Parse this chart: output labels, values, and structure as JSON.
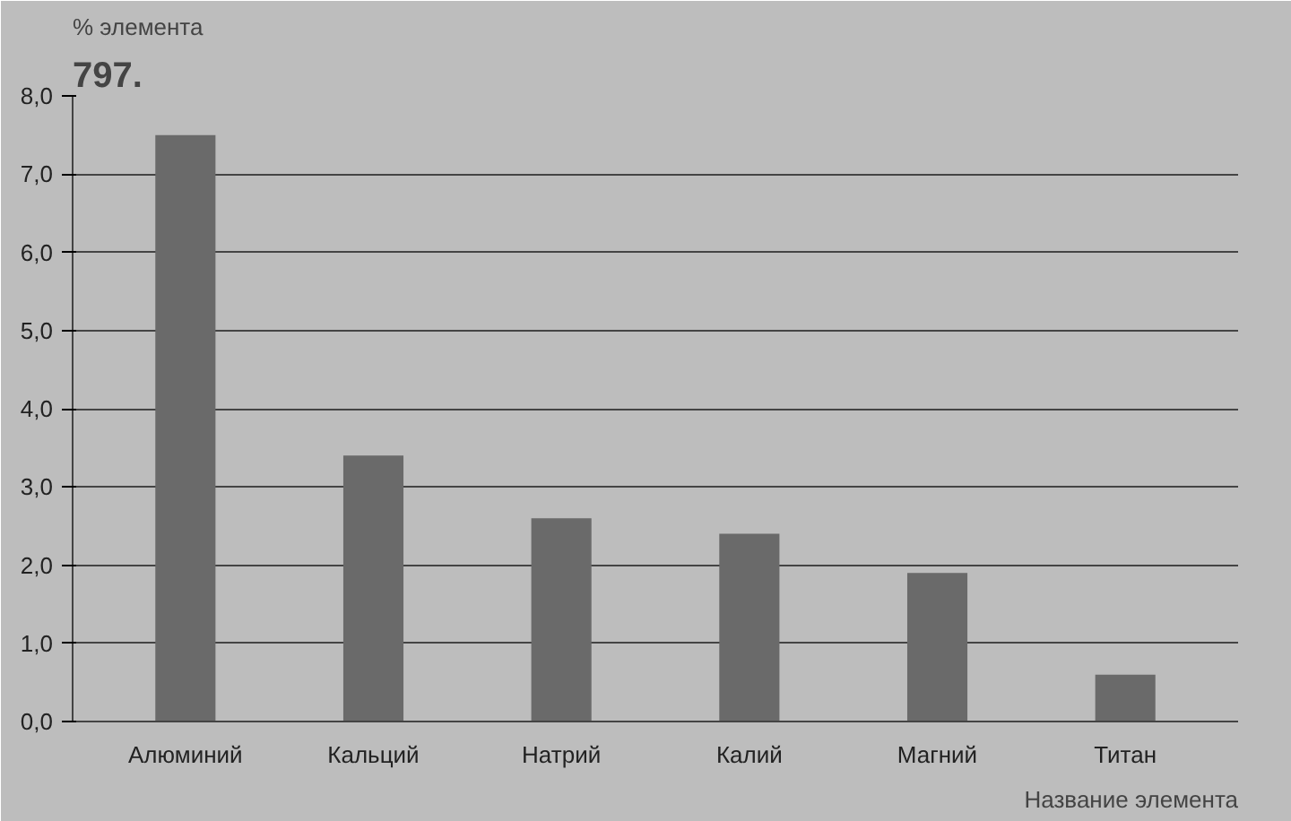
{
  "chart_data": {
    "type": "bar",
    "xlabel": "Название элемента",
    "ylabel": "% элемента",
    "annotations": [
      "797."
    ],
    "categories": [
      "Алюминий",
      "Кальций",
      "Натрий",
      "Калий",
      "Магний",
      "Титан"
    ],
    "values": [
      7.5,
      3.4,
      2.6,
      2.4,
      1.9,
      0.6
    ],
    "color": "#6a6a6a",
    "ylim": [
      0,
      8
    ],
    "yticks": [
      {
        "value": 0,
        "label": "0,0"
      },
      {
        "value": 1,
        "label": "1,0"
      },
      {
        "value": 2,
        "label": "2,0"
      },
      {
        "value": 3,
        "label": "3,0"
      },
      {
        "value": 4,
        "label": "4,0"
      },
      {
        "value": 5,
        "label": "5,0"
      },
      {
        "value": 6,
        "label": "6,0"
      },
      {
        "value": 7,
        "label": "7,0"
      },
      {
        "value": 8,
        "label": "8,0"
      }
    ],
    "grid": "y"
  }
}
